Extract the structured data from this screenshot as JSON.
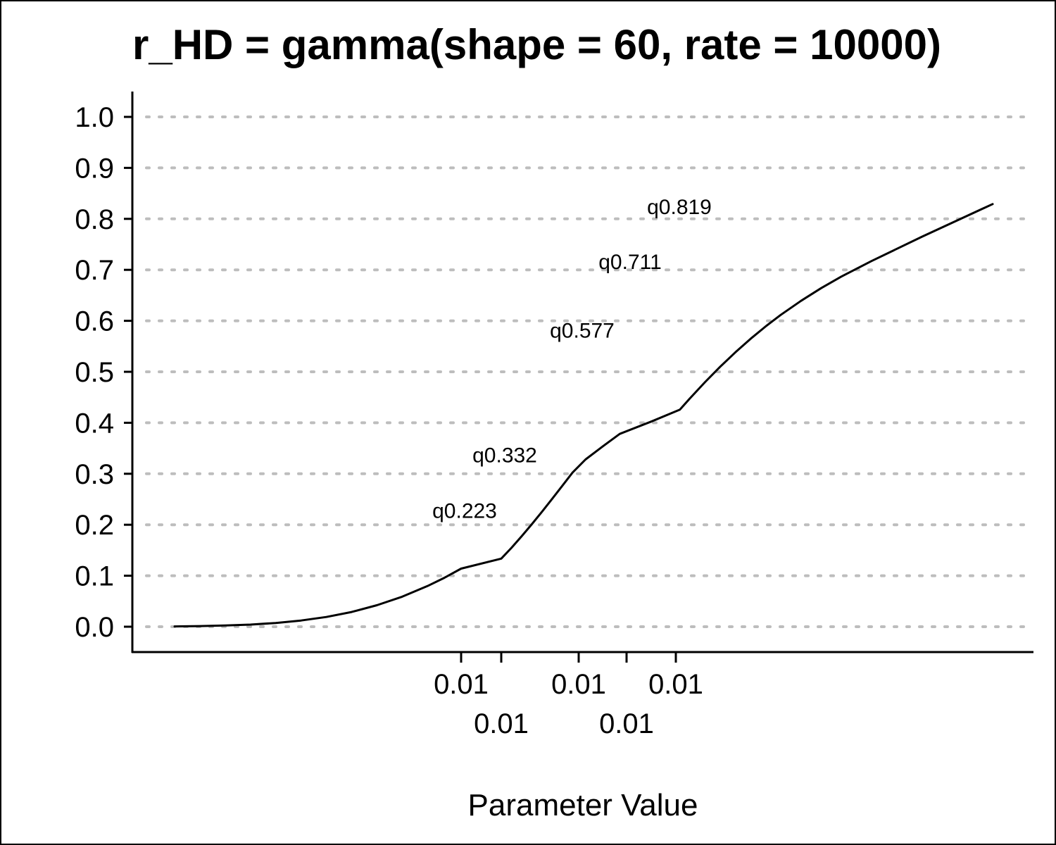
{
  "chart_data": {
    "type": "line",
    "title": "r_HD = gamma(shape = 60, rate = 10000)",
    "xlabel": "Parameter Value",
    "ylabel": "",
    "ylim": [
      0,
      1
    ],
    "grid": {
      "y_major": true,
      "x_major": false,
      "style": "dotted"
    },
    "legend": "none",
    "y_ticks": [
      0.0,
      0.1,
      0.2,
      0.3,
      0.4,
      0.5,
      0.6,
      0.7,
      0.8,
      0.9,
      1.0
    ],
    "y_tick_labels": [
      "0.0",
      "0.1",
      "0.2",
      "0.3",
      "0.4",
      "0.5",
      "0.6",
      "0.7",
      "0.8",
      "0.9",
      "1.0"
    ],
    "x_ticks": [
      0.0051,
      0.0052,
      0.00596,
      0.00624,
      0.00636
    ],
    "x_tick_labels": [
      "0.01",
      "0.01",
      "0.01",
      "0.01",
      "0.01"
    ],
    "series": [
      {
        "x": [
          0.0034,
          0.00355,
          0.0037,
          0.00385,
          0.004,
          0.00415,
          0.0043,
          0.00445,
          0.0046,
          0.00475,
          0.0049,
          0.005,
          0.0051,
          0.0052,
          0.0053,
          0.0054,
          0.0055,
          0.0056,
          0.0057,
          0.0058,
          0.0059,
          0.006,
          0.0061,
          0.0062,
          0.0063,
          0.0064,
          0.0065,
          0.00665,
          0.0068,
          0.00695,
          0.0071,
          0.00725,
          0.0074,
          0.0076,
          0.0078,
          0.008,
          0.0083,
          0.0088,
          0.0095
        ],
        "y": [
          0.0006,
          0.0012,
          0.0023,
          0.0042,
          0.0073,
          0.0121,
          0.0191,
          0.0289,
          0.0421,
          0.0589,
          0.0797,
          0.0959,
          0.1139,
          0.1335,
          0.1547,
          0.1773,
          0.201,
          0.2256,
          0.2509,
          0.2765,
          0.3023,
          0.328,
          0.3534,
          0.3782,
          0.4024,
          0.4257,
          0.4481,
          0.48,
          0.5101,
          0.5383,
          0.5646,
          0.589,
          0.6116,
          0.6391,
          0.6641,
          0.6867,
          0.7172,
          0.765,
          0.829
        ]
      }
    ],
    "annotations": [
      {
        "text": "q0.223",
        "x": 0.0051,
        "y": 0.223
      },
      {
        "text": "q0.332",
        "x": 0.0052,
        "y": 0.332
      },
      {
        "text": "q0.577",
        "x": 0.00596,
        "y": 0.577
      },
      {
        "text": "q0.711",
        "x": 0.00624,
        "y": 0.711
      },
      {
        "text": "q0.819",
        "x": 0.00636,
        "y": 0.819
      }
    ]
  }
}
